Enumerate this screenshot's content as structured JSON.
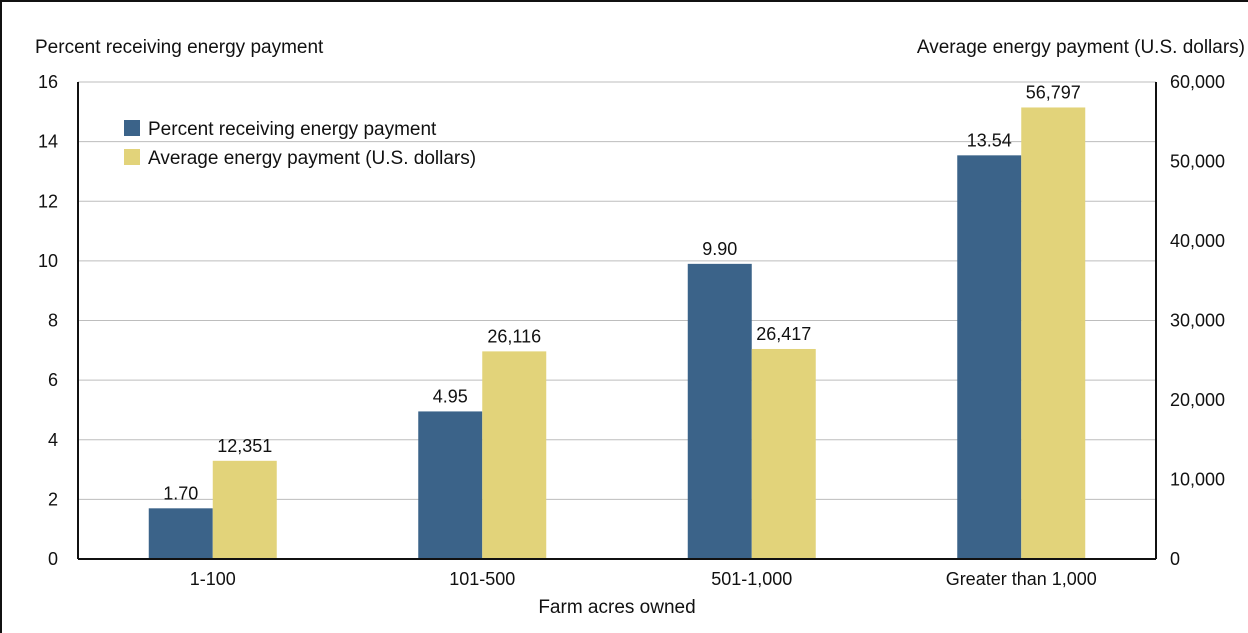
{
  "chart_data": {
    "type": "bar",
    "xlabel": "Farm acres owned",
    "ylabel_left": "Percent receiving energy payment",
    "ylabel_right": "Average energy payment (U.S. dollars)",
    "categories": [
      "1-100",
      "101-500",
      "501-1,000",
      "Greater than 1,000"
    ],
    "ylim_left": [
      0,
      16
    ],
    "ylim_right": [
      0,
      60000
    ],
    "yticks_left": [
      "0",
      "2",
      "4",
      "6",
      "8",
      "10",
      "12",
      "14",
      "16"
    ],
    "yticks_right": [
      "0",
      "10,000",
      "20,000",
      "30,000",
      "40,000",
      "50,000",
      "60,000"
    ],
    "grid": true,
    "legend_position": "top-left",
    "series": [
      {
        "name": "Percent receiving energy payment",
        "axis": "left",
        "color": "#3b6389",
        "values": [
          1.7,
          4.95,
          9.9,
          13.54
        ],
        "labels": [
          "1.70",
          "4.95",
          "9.90",
          "13.54"
        ]
      },
      {
        "name": "Average energy payment (U.S. dollars)",
        "axis": "right",
        "color": "#e2d37a",
        "values": [
          12351,
          26116,
          26417,
          56797
        ],
        "labels": [
          "12,351",
          "26,116",
          "26,417",
          "56,797"
        ]
      }
    ]
  }
}
